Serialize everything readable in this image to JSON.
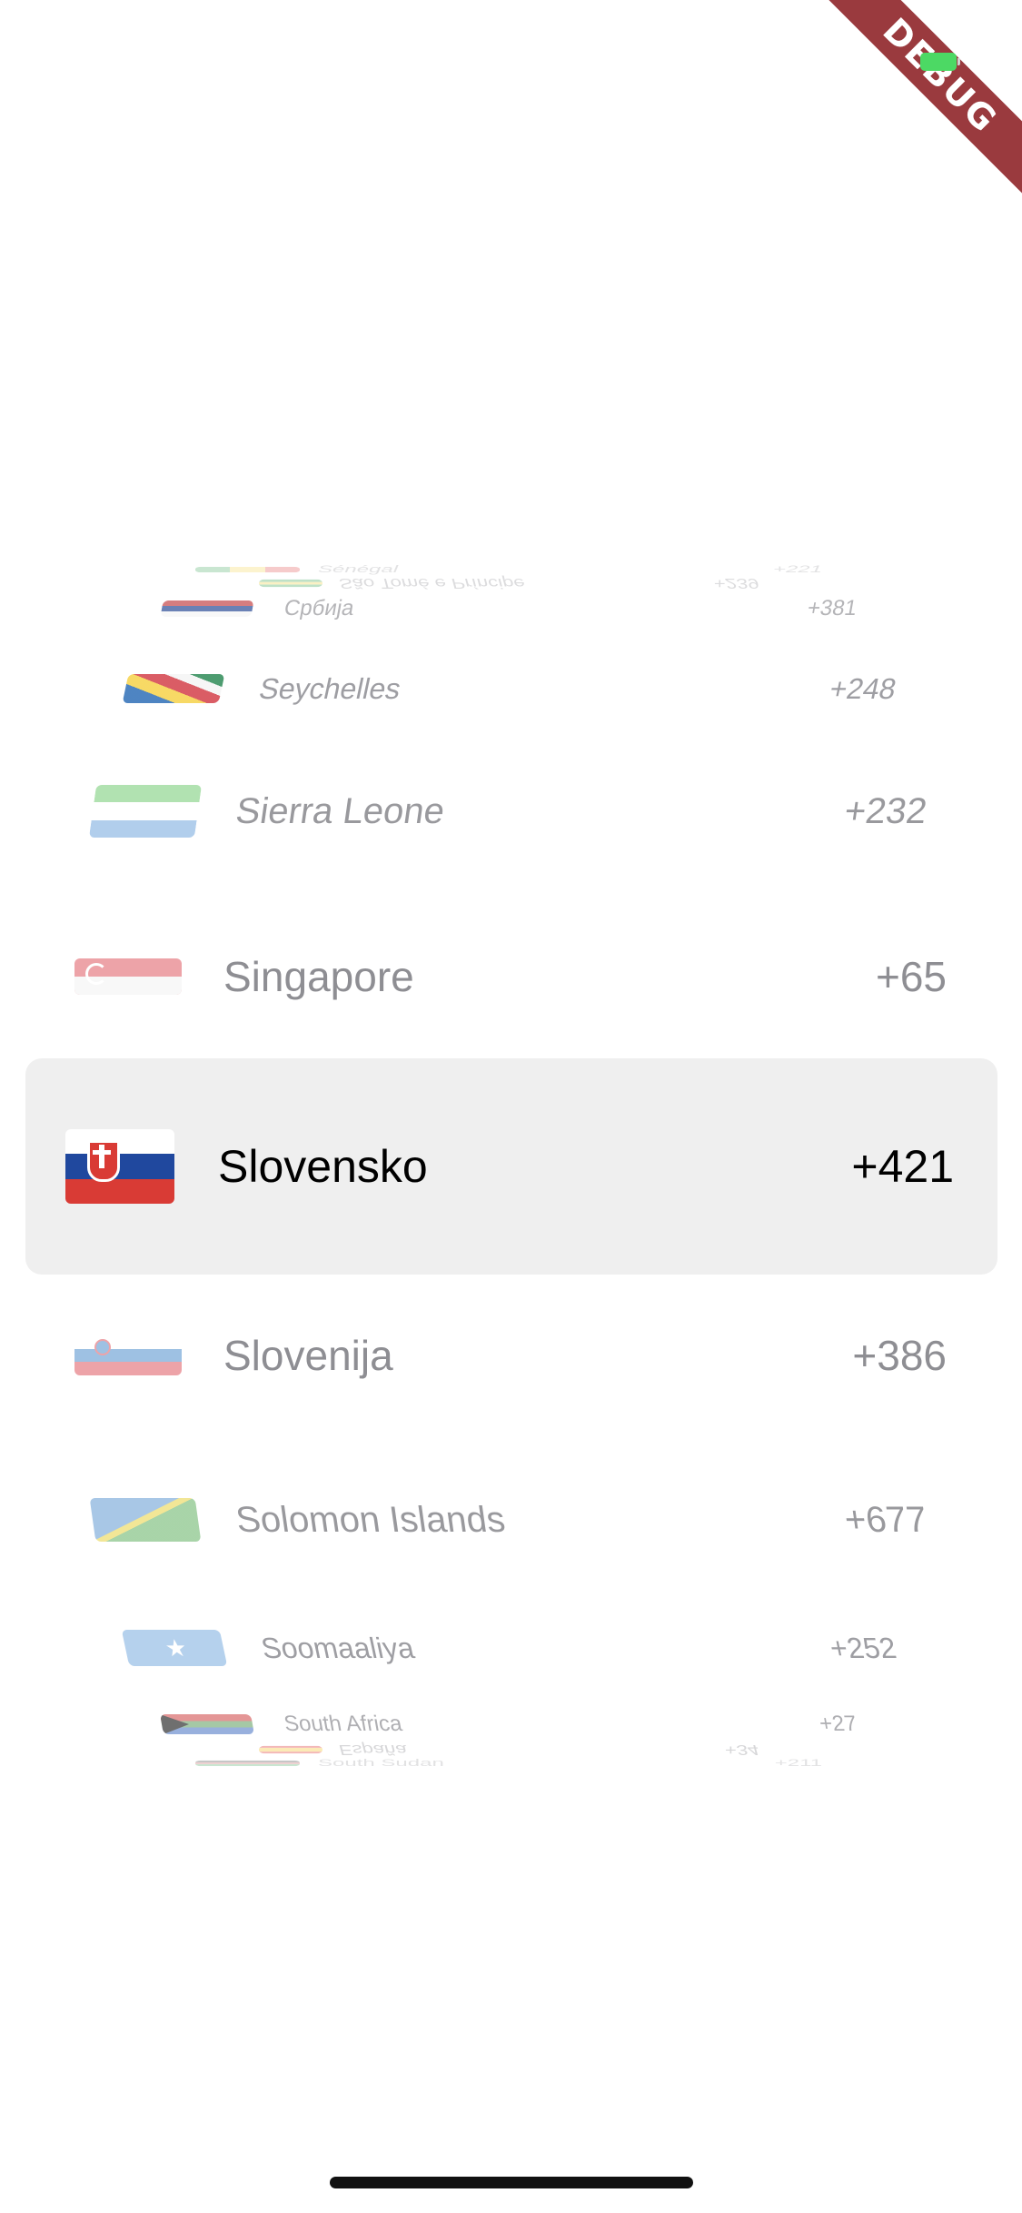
{
  "status_bar": {
    "debug_banner": "DEBUG"
  },
  "picker": {
    "selected_index": 6,
    "items": [
      {
        "name": "Sénégal",
        "code": "+221",
        "flag": "senegal-flag-icon"
      },
      {
        "name": "São Tomé e Príncipe",
        "code": "+239",
        "flag": "sao-tome-flag-icon"
      },
      {
        "name": "Србија",
        "code": "+381",
        "flag": "serbia-flag-icon"
      },
      {
        "name": "Seychelles",
        "code": "+248",
        "flag": "seychelles-flag-icon"
      },
      {
        "name": "Sierra Leone",
        "code": "+232",
        "flag": "sierra-leone-flag-icon"
      },
      {
        "name": "Singapore",
        "code": "+65",
        "flag": "singapore-flag-icon"
      },
      {
        "name": "Slovensko",
        "code": "+421",
        "flag": "slovakia-flag-icon"
      },
      {
        "name": "Slovenija",
        "code": "+386",
        "flag": "slovenia-flag-icon"
      },
      {
        "name": "Solomon Islands",
        "code": "+677",
        "flag": "solomon-islands-flag-icon"
      },
      {
        "name": "Soomaaliya",
        "code": "+252",
        "flag": "somalia-flag-icon"
      },
      {
        "name": "South Africa",
        "code": "+27",
        "flag": "south-africa-flag-icon"
      },
      {
        "name": "España",
        "code": "+34",
        "flag": "spain-flag-icon"
      },
      {
        "name": "South Sudan",
        "code": "+211",
        "flag": "south-sudan-flag-icon"
      }
    ]
  },
  "colors": {
    "selected_text": "#000000",
    "unselected_text": "#8e8e93",
    "selection_band": "#efefef",
    "debug_ribbon": "#9a3a3e"
  }
}
